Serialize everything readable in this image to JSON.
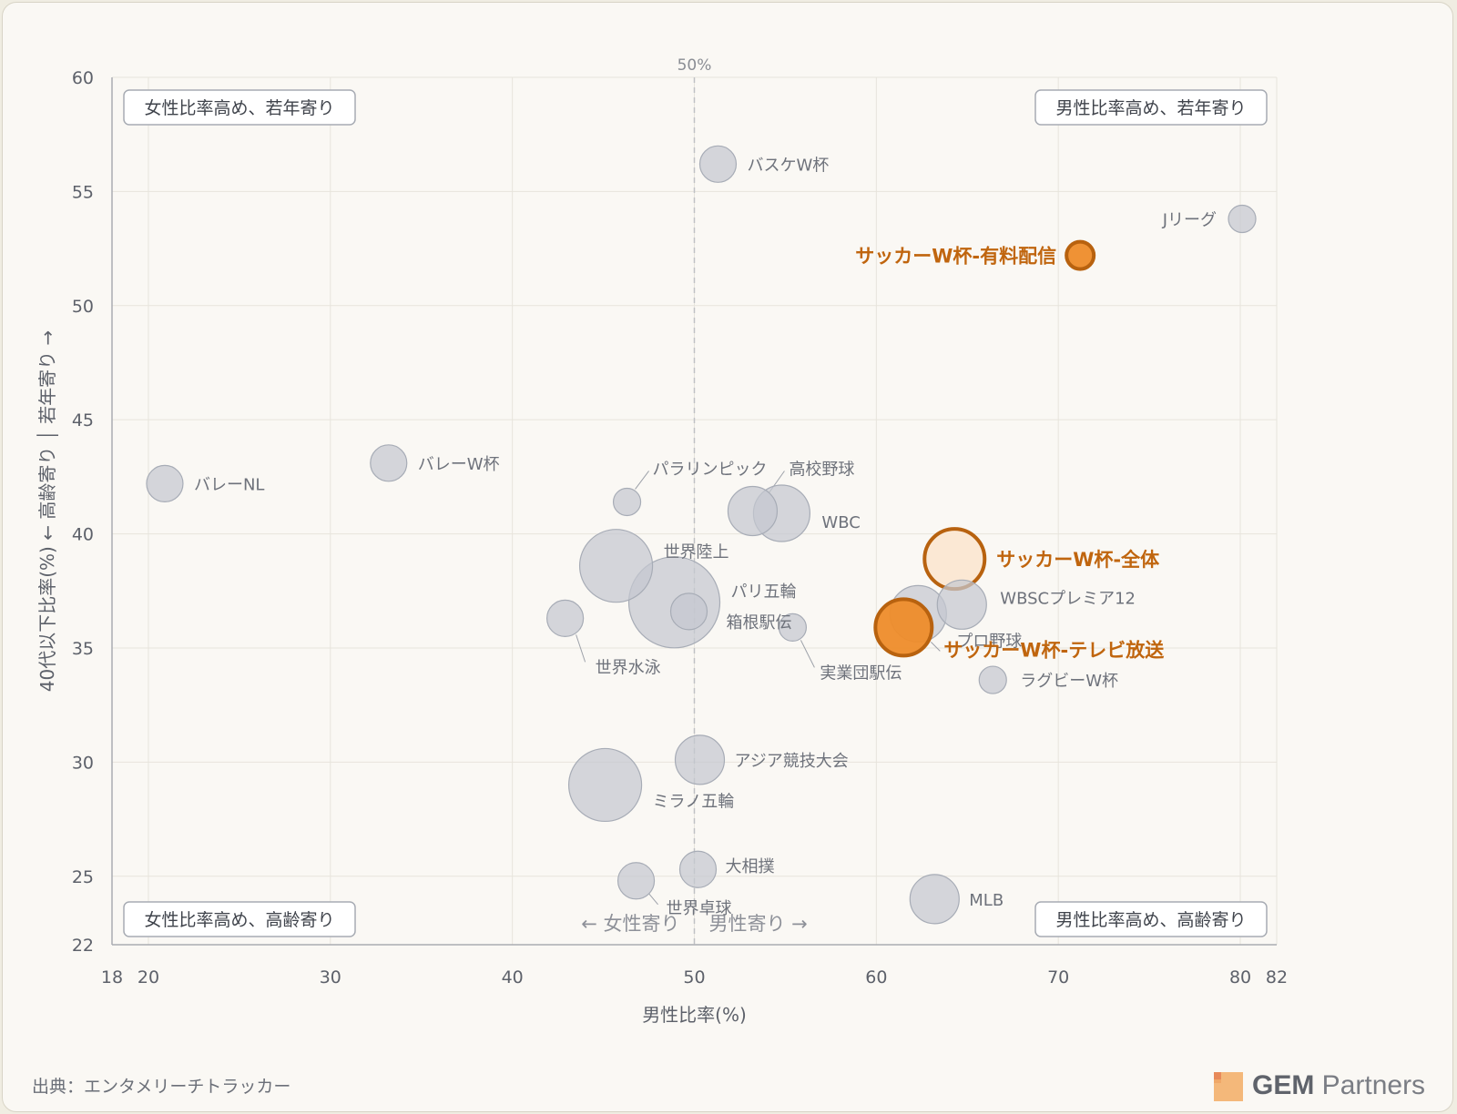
{
  "chart_data": {
    "type": "scatter",
    "xlabel": "男性比率(%)",
    "ylabel": "40代以下比率(%) ← 高齢寄り │ 若年寄り →",
    "xlim": [
      18,
      82
    ],
    "ylim": [
      22,
      60
    ],
    "x_ticks": [
      18,
      20,
      30,
      40,
      50,
      60,
      70,
      80,
      82
    ],
    "y_ticks": [
      22,
      25,
      30,
      35,
      40,
      45,
      50,
      55,
      60
    ],
    "reference_line": {
      "x": 50,
      "label": "50%"
    },
    "direction_labels": {
      "left": "← 女性寄り",
      "right": "男性寄り →"
    },
    "quadrant_labels": {
      "top_left": "女性比率高め、若年寄り",
      "top_right": "男性比率高め、若年寄り",
      "bottom_left": "女性比率高め、高齢寄り",
      "bottom_right": "男性比率高め、高齢寄り"
    },
    "colors": {
      "neutral_fill": "#c5c8d0",
      "neutral_stroke": "#a7acb6",
      "highlight": "#ee8c2a",
      "highlight_stroke": "#b8620f",
      "highlight_text": "#c0650e",
      "highlight_light_fill": "#fbe7d2"
    },
    "points": [
      {
        "label": "バスケW杯",
        "x": 51.3,
        "y": 56.2,
        "size": 2
      },
      {
        "label": "Jリーグ",
        "x": 80.1,
        "y": 53.8,
        "size": 1
      },
      {
        "label": "サッカーW杯-有料配信",
        "x": 71.2,
        "y": 52.2,
        "size": 1,
        "highlight": true
      },
      {
        "label": "バレーW杯",
        "x": 33.2,
        "y": 43.1,
        "size": 2
      },
      {
        "label": "バレーNL",
        "x": 20.9,
        "y": 42.2,
        "size": 2
      },
      {
        "label": "パラリンピック",
        "x": 46.3,
        "y": 41.4,
        "size": 1
      },
      {
        "label": "高校野球",
        "x": 53.2,
        "y": 41.0,
        "size": 3
      },
      {
        "label": "WBC",
        "x": 54.8,
        "y": 40.9,
        "size": 4
      },
      {
        "label": "サッカーW杯-全体",
        "x": 64.3,
        "y": 38.9,
        "size": 5,
        "highlight": true,
        "variant": "light"
      },
      {
        "label": "世界陸上",
        "x": 45.7,
        "y": 38.6,
        "size": 6
      },
      {
        "label": "パリ五輪",
        "x": 48.9,
        "y": 37.0,
        "size": 8
      },
      {
        "label": "WBSCプレミア12",
        "x": 64.7,
        "y": 36.9,
        "size": 3
      },
      {
        "label": "箱根駅伝",
        "x": 49.7,
        "y": 36.6,
        "size": 2
      },
      {
        "label": "プロ野球",
        "x": 62.3,
        "y": 36.5,
        "size": 4
      },
      {
        "label": "世界水泳",
        "x": 42.9,
        "y": 36.3,
        "size": 2
      },
      {
        "label": "実業団駅伝",
        "x": 55.4,
        "y": 35.9,
        "size": 1
      },
      {
        "label": "サッカーW杯-テレビ放送",
        "x": 61.5,
        "y": 35.9,
        "size": 4,
        "highlight": true
      },
      {
        "label": "ラグビーW杯",
        "x": 66.4,
        "y": 33.6,
        "size": 1
      },
      {
        "label": "アジア競技大会",
        "x": 50.3,
        "y": 30.1,
        "size": 3
      },
      {
        "label": "ミラノ五輪",
        "x": 45.1,
        "y": 29.0,
        "size": 6
      },
      {
        "label": "大相撲",
        "x": 50.2,
        "y": 25.3,
        "size": 2
      },
      {
        "label": "世界卓球",
        "x": 46.8,
        "y": 24.8,
        "size": 2
      },
      {
        "label": "MLB",
        "x": 63.2,
        "y": 24.0,
        "size": 3
      }
    ]
  },
  "footer": {
    "source": "出典：エンタメリーチトラッカー",
    "logo_bold": "GEM",
    "logo_rest": " Partners"
  }
}
